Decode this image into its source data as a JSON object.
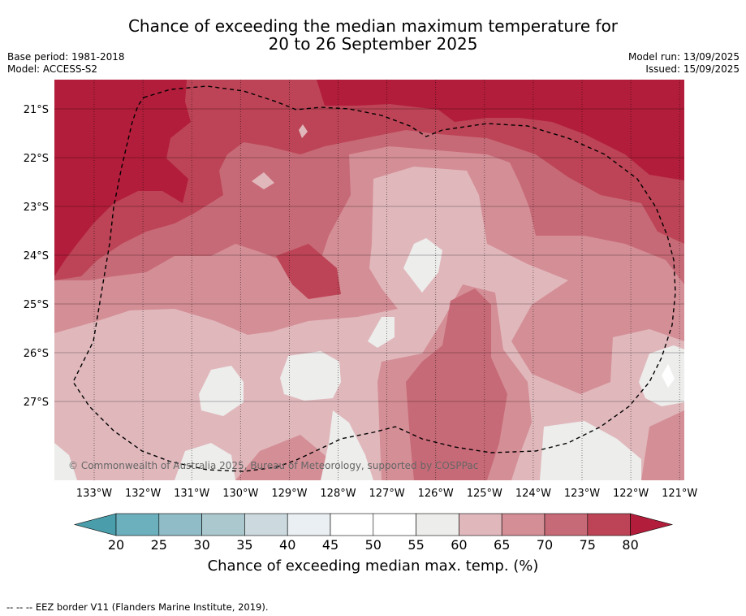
{
  "title": {
    "line1": "Chance of exceeding the median maximum temperature for",
    "line2": "20 to 26 September 2025"
  },
  "meta": {
    "base_period": "Base period: 1981-2018",
    "model": "Model: ACCESS-S2",
    "model_run": "Model run: 13/09/2025",
    "issued": "Issued: 15/09/2025"
  },
  "map": {
    "lat_labels": [
      "21°S",
      "22°S",
      "23°S",
      "24°S",
      "25°S",
      "26°S",
      "27°S"
    ],
    "lon_labels": [
      "133°W",
      "132°W",
      "131°W",
      "130°W",
      "129°W",
      "128°W",
      "127°W",
      "126°W",
      "125°W",
      "124°W",
      "123°W",
      "122°W",
      "121°W"
    ],
    "copyright": "© Commonwealth of Australia 2025, Bureau of Meteorology, supported by COSPPac"
  },
  "colorbar": {
    "ticks": [
      "20",
      "25",
      "30",
      "35",
      "40",
      "45",
      "50",
      "55",
      "60",
      "65",
      "70",
      "75",
      "80"
    ],
    "label": "Chance of exceeding median max. temp. (%)",
    "colors": {
      "below20": "#4a9eab",
      "20-25": "#6cafbd",
      "25-30": "#8fbcc6",
      "30-35": "#aac8cd",
      "35-40": "#ccdadf",
      "40-45": "#e9eff2",
      "45-50": "#ffffff",
      "50-55": "#ffffff",
      "55-60": "#ededec",
      "60-65": "#e0b8bc",
      "65-70": "#d48e96",
      "70-75": "#c76a77",
      "75-80": "#bc4456",
      "above80": "#b21d3b"
    }
  },
  "footnote": "--  --  -- EEZ border V11 (Flanders Marine Institute, 2019)."
}
